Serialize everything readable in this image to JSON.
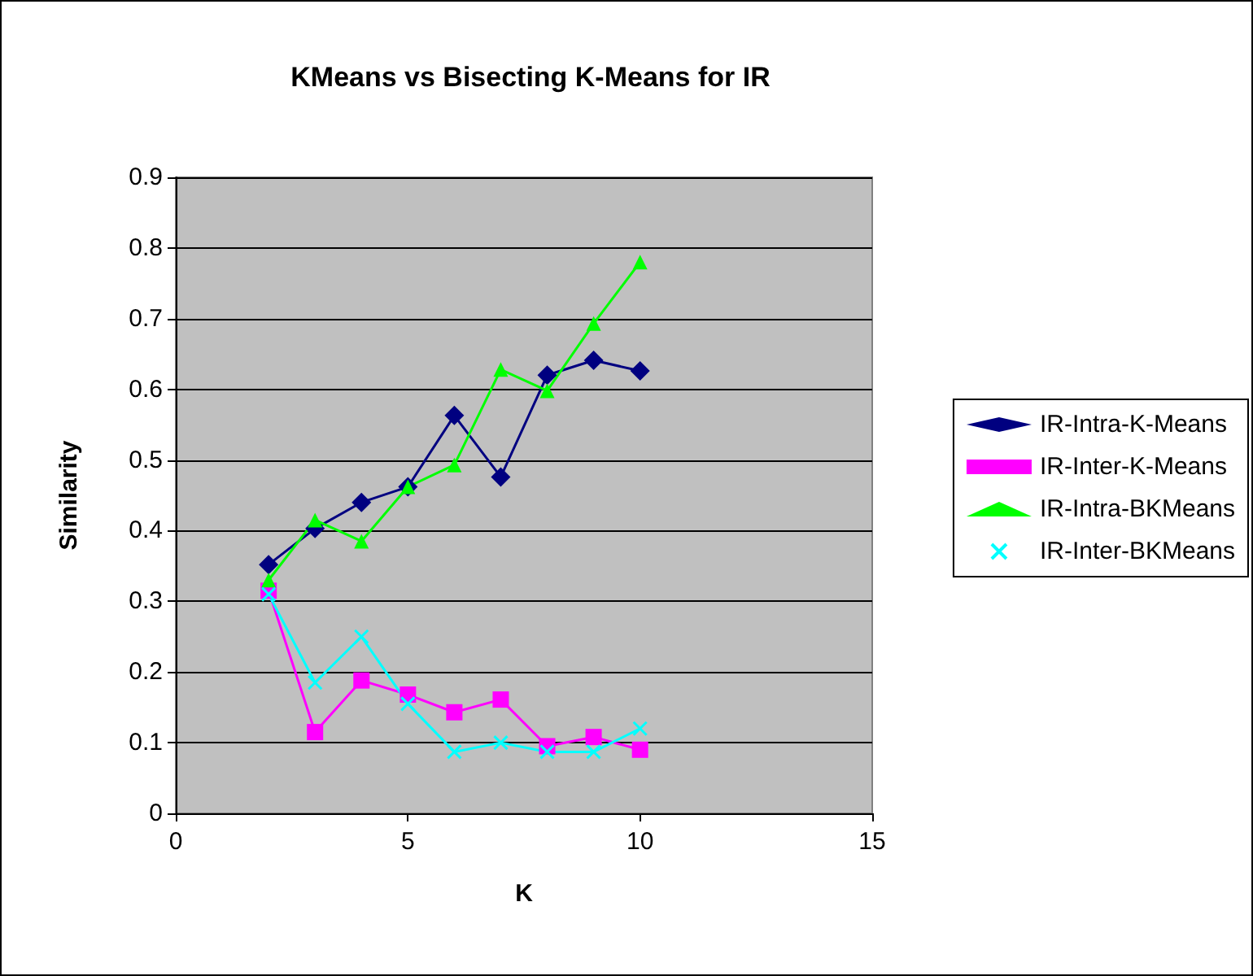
{
  "chart_data": {
    "type": "line",
    "title": "KMeans vs Bisecting K-Means for IR",
    "xlabel": "K",
    "ylabel": "Similarity",
    "x": [
      2,
      3,
      4,
      5,
      6,
      7,
      8,
      9,
      10
    ],
    "series": [
      {
        "name": "IR-Intra-K-Means",
        "color": "#000080",
        "marker": "diamond",
        "values": [
          0.352,
          0.403,
          0.44,
          0.462,
          0.563,
          0.476,
          0.62,
          0.641,
          0.626
        ]
      },
      {
        "name": "IR-Inter-K-Means",
        "color": "#ff00ff",
        "marker": "square",
        "values": [
          0.315,
          0.115,
          0.188,
          0.168,
          0.143,
          0.161,
          0.095,
          0.108,
          0.09
        ]
      },
      {
        "name": "IR-Intra-BKMeans",
        "color": "#00ff00",
        "marker": "triangle",
        "values": [
          0.33,
          0.415,
          0.385,
          0.462,
          0.493,
          0.628,
          0.598,
          0.693,
          0.78
        ]
      },
      {
        "name": "IR-Inter-BKMeans",
        "color": "#00ffff",
        "marker": "cross",
        "values": [
          0.31,
          0.185,
          0.25,
          0.155,
          0.087,
          0.1,
          0.087,
          0.087,
          0.12
        ]
      }
    ],
    "xlim": [
      0,
      15
    ],
    "xticks": [
      0,
      5,
      10,
      15
    ],
    "ylim": [
      0,
      0.9
    ],
    "yticks": [
      0,
      0.1,
      0.2,
      0.3,
      0.4,
      0.5,
      0.6,
      0.7,
      0.8,
      0.9
    ],
    "grid": "y",
    "legend": "right",
    "line_style": "solid"
  }
}
